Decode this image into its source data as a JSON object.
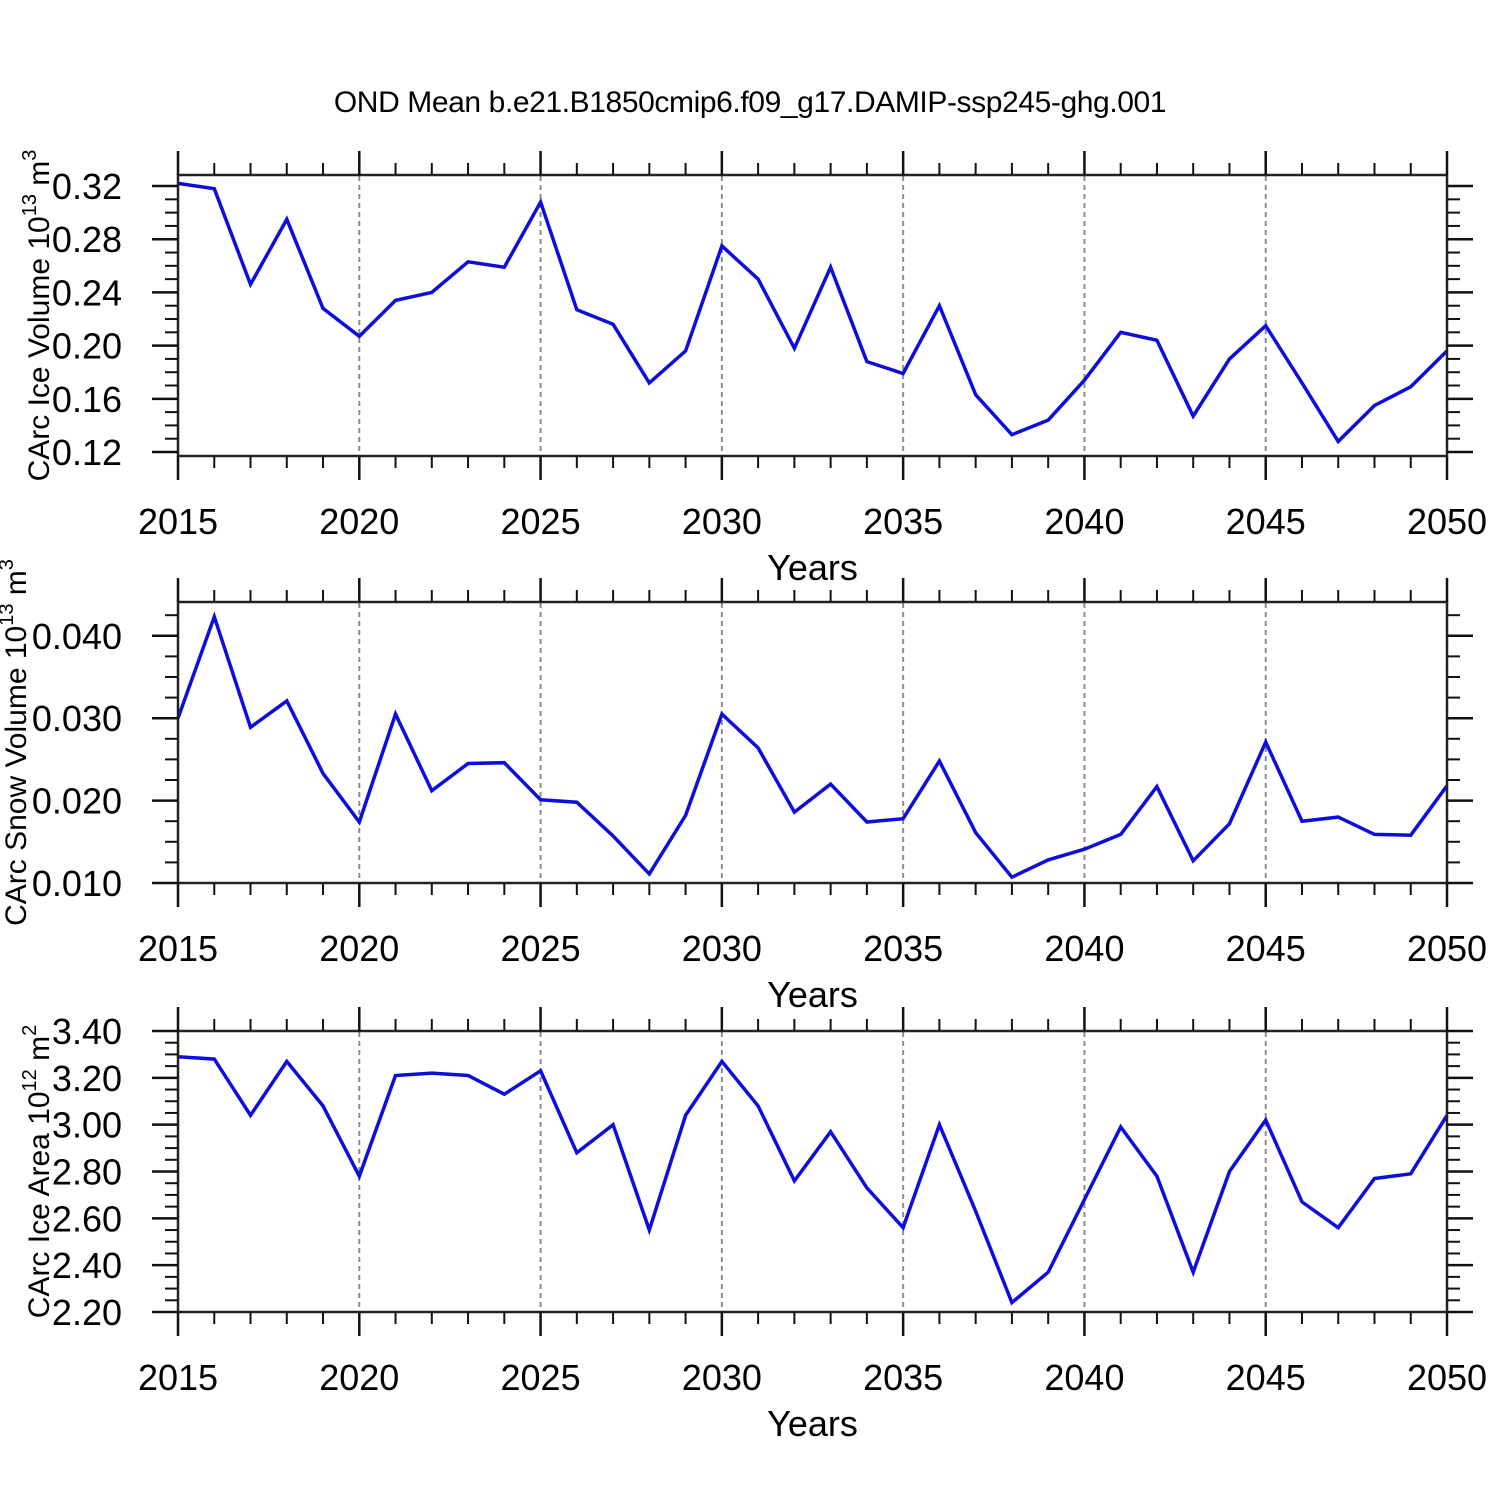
{
  "title": "OND Mean b.e21.B1850cmip6.f09_g17.DAMIP-ssp245-ghg.001",
  "xlabel": "Years",
  "colors": {
    "line": "#0d0ddd",
    "frame": "#222222",
    "grid": "#8c8c8c",
    "tick": "#111111",
    "text": "#000000",
    "background": "#ffffff"
  },
  "years": [
    2015,
    2016,
    2017,
    2018,
    2019,
    2020,
    2021,
    2022,
    2023,
    2024,
    2025,
    2026,
    2027,
    2028,
    2029,
    2030,
    2031,
    2032,
    2033,
    2034,
    2035,
    2036,
    2037,
    2038,
    2039,
    2040,
    2041,
    2042,
    2043,
    2044,
    2045,
    2046,
    2047,
    2048,
    2049,
    2050
  ],
  "x_major_ticks": [
    2015,
    2020,
    2025,
    2030,
    2035,
    2040,
    2045,
    2050
  ],
  "grid_years": [
    2020,
    2025,
    2030,
    2035,
    2040,
    2045
  ],
  "chart_data": [
    {
      "type": "line",
      "name": "carc-ice-volume",
      "ylabel_text": "CArc Ice Volume 10^13 m^3",
      "ylabel_parts": [
        {
          "t": "CArc Ice Volume 10"
        },
        {
          "t": "13",
          "sup": true
        },
        {
          "t": " m"
        },
        {
          "t": "3",
          "sup": true
        }
      ],
      "xlabel": "Years",
      "x_range": [
        2015,
        2050
      ],
      "ylim": [
        0.117,
        0.3283
      ],
      "yticks": [
        {
          "v": 0.12,
          "label": "0.12"
        },
        {
          "v": 0.16,
          "label": "0.16"
        },
        {
          "v": 0.2,
          "label": "0.20"
        },
        {
          "v": 0.24,
          "label": "0.24"
        },
        {
          "v": 0.28,
          "label": "0.28"
        },
        {
          "v": 0.32,
          "label": "0.32"
        }
      ],
      "ymajor_step": 0.04,
      "yminor_step": 0.01,
      "ylabel_x": 49,
      "values": [
        0.322,
        0.318,
        0.246,
        0.295,
        0.228,
        0.207,
        0.234,
        0.24,
        0.263,
        0.259,
        0.308,
        0.227,
        0.216,
        0.172,
        0.196,
        0.275,
        0.25,
        0.198,
        0.259,
        0.188,
        0.179,
        0.23,
        0.163,
        0.133,
        0.144,
        0.174,
        0.21,
        0.204,
        0.147,
        0.19,
        0.215,
        0.172,
        0.128,
        0.155,
        0.169,
        0.196
      ]
    },
    {
      "type": "line",
      "name": "carc-snow-volume",
      "ylabel_text": "CArc Snow Volume 10^13 m^3",
      "ylabel_parts": [
        {
          "t": "CArc Snow Volume 10"
        },
        {
          "t": "13",
          "sup": true
        },
        {
          "t": " m"
        },
        {
          "t": "3",
          "sup": true
        }
      ],
      "xlabel": "Years",
      "x_range": [
        2015,
        2050
      ],
      "ylim": [
        0.01,
        0.0441
      ],
      "yticks": [
        {
          "v": 0.01,
          "label": "0.010"
        },
        {
          "v": 0.02,
          "label": "0.020"
        },
        {
          "v": 0.03,
          "label": "0.030"
        },
        {
          "v": 0.04,
          "label": "0.040"
        }
      ],
      "ymajor_step": 0.01,
      "yminor_step": 0.0025,
      "ylabel_x": 26,
      "values": [
        0.03,
        0.0423,
        0.0289,
        0.0321,
        0.0233,
        0.0174,
        0.0305,
        0.0212,
        0.0245,
        0.0246,
        0.0201,
        0.0198,
        0.0157,
        0.0111,
        0.0182,
        0.0305,
        0.0264,
        0.0186,
        0.022,
        0.0174,
        0.0178,
        0.0248,
        0.0161,
        0.0107,
        0.0128,
        0.0141,
        0.0159,
        0.0217,
        0.0127,
        0.0172,
        0.0271,
        0.0175,
        0.018,
        0.0159,
        0.0158,
        0.0218
      ]
    },
    {
      "type": "line",
      "name": "carc-ice-area",
      "ylabel_text": "CArc Ice Area 10^12 m^2",
      "ylabel_parts": [
        {
          "t": "CArc Ice Area 10"
        },
        {
          "t": "12",
          "sup": true
        },
        {
          "t": " m"
        },
        {
          "t": "2",
          "sup": true
        }
      ],
      "xlabel": "Years",
      "x_range": [
        2015,
        2050
      ],
      "ylim": [
        2.2,
        3.4
      ],
      "yticks": [
        {
          "v": 2.2,
          "label": "2.20"
        },
        {
          "v": 2.4,
          "label": "2.40"
        },
        {
          "v": 2.6,
          "label": "2.60"
        },
        {
          "v": 2.8,
          "label": "2.80"
        },
        {
          "v": 3.0,
          "label": "3.00"
        },
        {
          "v": 3.2,
          "label": "3.20"
        },
        {
          "v": 3.4,
          "label": "3.40"
        }
      ],
      "ymajor_step": 0.2,
      "yminor_step": 0.05,
      "ylabel_x": 49,
      "values": [
        3.29,
        3.28,
        3.04,
        3.27,
        3.08,
        2.78,
        3.21,
        3.22,
        3.21,
        3.13,
        3.23,
        2.88,
        3.0,
        2.55,
        3.04,
        3.27,
        3.08,
        2.76,
        2.97,
        2.73,
        2.56,
        3.0,
        2.63,
        2.24,
        2.37,
        2.68,
        2.99,
        2.78,
        2.37,
        2.8,
        3.02,
        2.67,
        2.56,
        2.77,
        2.79,
        3.04
      ]
    }
  ]
}
